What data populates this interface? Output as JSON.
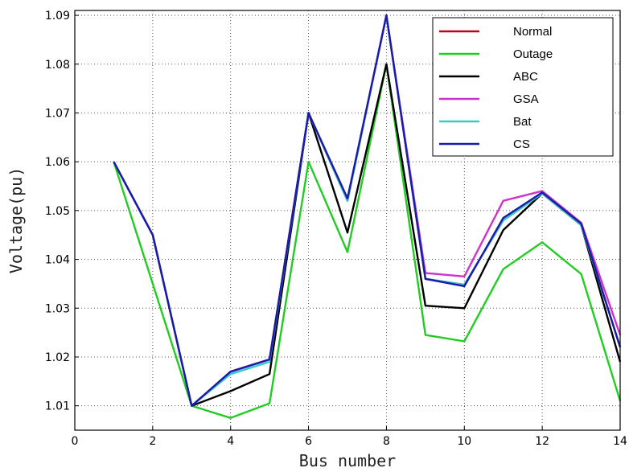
{
  "chart_data": {
    "type": "line",
    "title": "",
    "xlabel": "Bus number",
    "ylabel": "Voltage(pu)",
    "xlim": [
      0,
      14
    ],
    "ylim": [
      1.005,
      1.091
    ],
    "xticks": [
      0,
      2,
      4,
      6,
      8,
      10,
      12,
      14
    ],
    "yticks": [
      1.01,
      1.02,
      1.03,
      1.04,
      1.05,
      1.06,
      1.07,
      1.08,
      1.09
    ],
    "grid": true,
    "legend_position": "top-right",
    "x": [
      1,
      2,
      3,
      4,
      5,
      6,
      7,
      8,
      9,
      10,
      11,
      12,
      13,
      14
    ],
    "series": [
      {
        "name": "Normal",
        "color": "#c0001a",
        "values": [
          1.06,
          1.045,
          1.01,
          1.017,
          1.0195,
          1.07,
          1.052,
          1.09,
          1.036,
          1.0348,
          1.048,
          1.0535,
          1.047,
          1.022
        ]
      },
      {
        "name": "Outage",
        "color": "#22cc22",
        "values": [
          1.06,
          1.035,
          1.01,
          1.0075,
          1.0105,
          1.06,
          1.0415,
          1.08,
          1.0245,
          1.0232,
          1.038,
          1.0435,
          1.037,
          1.011
        ]
      },
      {
        "name": "ABC",
        "color": "#000000",
        "values": [
          1.06,
          1.045,
          1.01,
          1.013,
          1.0165,
          1.07,
          1.0455,
          1.08,
          1.0305,
          1.03,
          1.046,
          1.0535,
          1.047,
          1.019
        ]
      },
      {
        "name": "GSA",
        "color": "#cc33cc",
        "values": [
          1.06,
          1.045,
          1.01,
          1.017,
          1.0195,
          1.07,
          1.052,
          1.09,
          1.0372,
          1.0365,
          1.052,
          1.054,
          1.0475,
          1.0245
        ]
      },
      {
        "name": "Bat",
        "color": "#33cccc",
        "values": [
          1.06,
          1.045,
          1.01,
          1.0165,
          1.019,
          1.07,
          1.052,
          1.09,
          1.036,
          1.0348,
          1.048,
          1.0535,
          1.047,
          1.022
        ]
      },
      {
        "name": "CS",
        "color": "#1a1aaa",
        "values": [
          1.06,
          1.045,
          1.01,
          1.017,
          1.0195,
          1.07,
          1.0525,
          1.09,
          1.036,
          1.0345,
          1.0485,
          1.0537,
          1.0473,
          1.022
        ]
      }
    ]
  }
}
